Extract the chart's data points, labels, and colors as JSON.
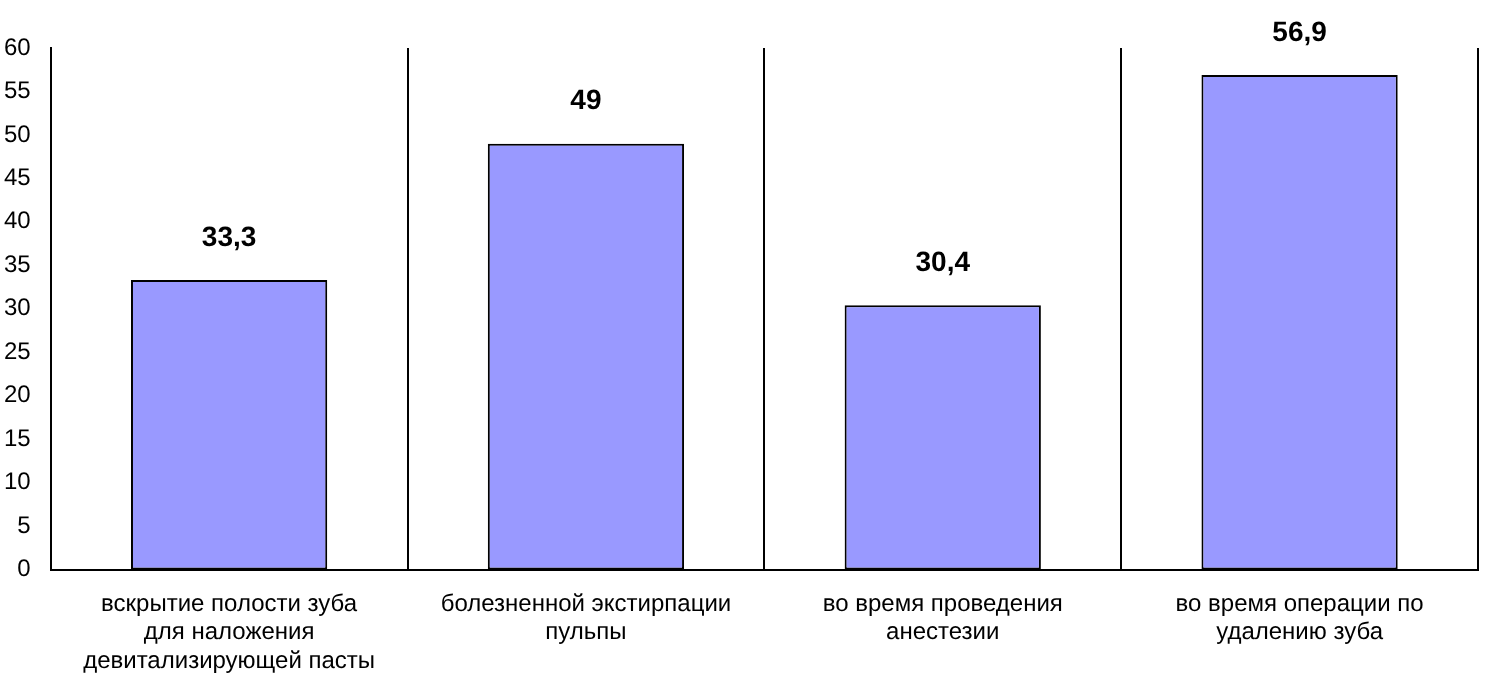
{
  "chart_data": {
    "type": "bar",
    "categories": [
      "вскрытие полости зуба для наложения девитализирующей пасты",
      "болезненной экстирпации пульпы",
      "во время проведения анестезии",
      "во время операции по удалению зуба"
    ],
    "values": [
      33.3,
      49,
      30.4,
      56.9
    ],
    "value_labels": [
      "33,3",
      "49",
      "30,4",
      "56,9"
    ],
    "color": "#9999ff",
    "ylim": [
      0,
      60
    ],
    "yticks": [
      0,
      5,
      10,
      15,
      20,
      25,
      30,
      35,
      40,
      45,
      50,
      55,
      60
    ],
    "grid": "x",
    "legend": false
  }
}
